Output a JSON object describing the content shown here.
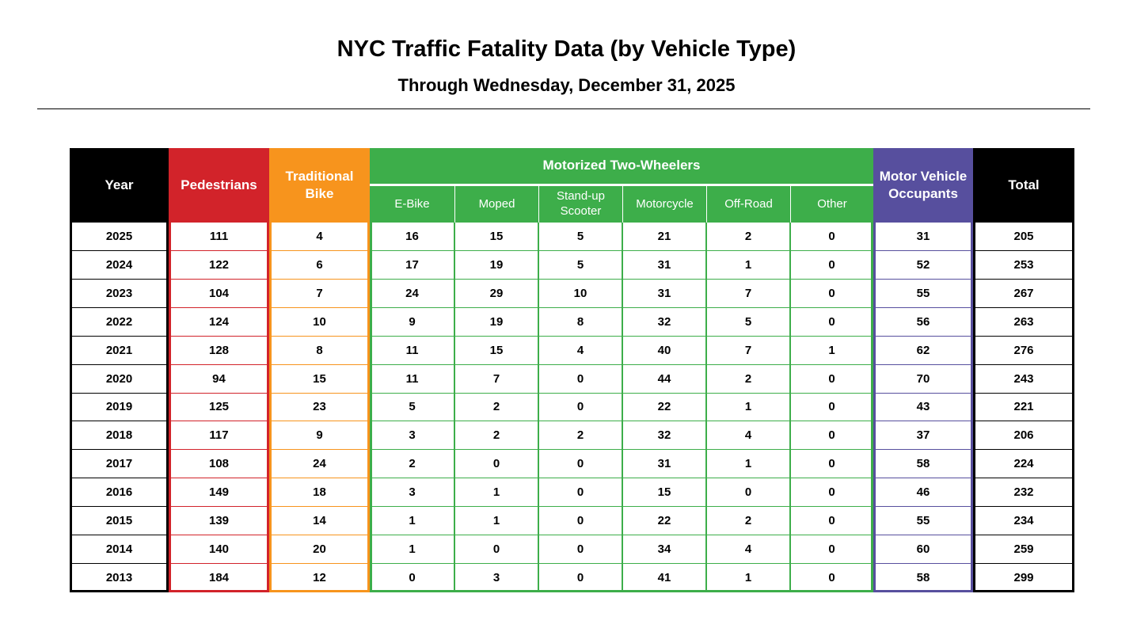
{
  "header": {
    "title": "NYC Traffic Fatality Data (by Vehicle Type)",
    "subtitle": "Through Wednesday, December 31, 2025"
  },
  "table": {
    "group": "Motorized Two-Wheelers",
    "columns": [
      "Year",
      "Pedestrians",
      "Traditional Bike",
      "E-Bike",
      "Moped",
      "Stand-up Scooter",
      "Motorcycle",
      "Off-Road",
      "Other",
      "Motor Vehicle Occupants",
      "Total"
    ],
    "rows": [
      [
        2025,
        111,
        4,
        16,
        15,
        5,
        21,
        2,
        0,
        31,
        205
      ],
      [
        2024,
        122,
        6,
        17,
        19,
        5,
        31,
        1,
        0,
        52,
        253
      ],
      [
        2023,
        104,
        7,
        24,
        29,
        10,
        31,
        7,
        0,
        55,
        267
      ],
      [
        2022,
        124,
        10,
        9,
        19,
        8,
        32,
        5,
        0,
        56,
        263
      ],
      [
        2021,
        128,
        8,
        11,
        15,
        4,
        40,
        7,
        1,
        62,
        276
      ],
      [
        2020,
        94,
        15,
        11,
        7,
        0,
        44,
        2,
        0,
        70,
        243
      ],
      [
        2019,
        125,
        23,
        5,
        2,
        0,
        22,
        1,
        0,
        43,
        221
      ],
      [
        2018,
        117,
        9,
        3,
        2,
        2,
        32,
        4,
        0,
        37,
        206
      ],
      [
        2017,
        108,
        24,
        2,
        0,
        0,
        31,
        1,
        0,
        58,
        224
      ],
      [
        2016,
        149,
        18,
        3,
        1,
        0,
        15,
        0,
        0,
        46,
        232
      ],
      [
        2015,
        139,
        14,
        1,
        1,
        0,
        22,
        2,
        0,
        55,
        234
      ],
      [
        2014,
        140,
        20,
        1,
        0,
        0,
        34,
        4,
        0,
        60,
        259
      ],
      [
        2013,
        184,
        12,
        0,
        3,
        0,
        41,
        1,
        0,
        58,
        299
      ]
    ]
  }
}
